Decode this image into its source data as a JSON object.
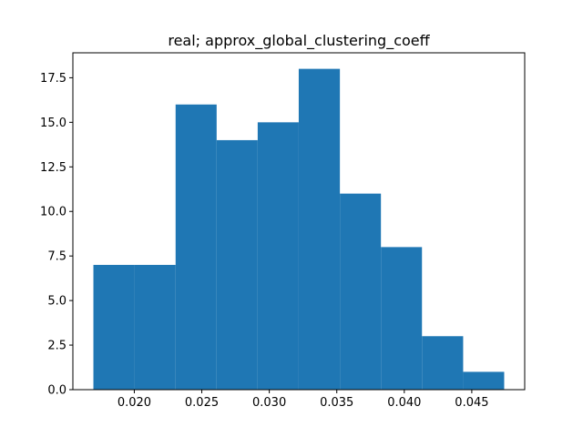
{
  "chart_data": {
    "type": "bar",
    "subtype": "histogram",
    "title": "real; approx_global_clustering_coeff",
    "xlabel": "",
    "ylabel": "",
    "bin_edges": [
      0.01697,
      0.02001,
      0.02306,
      0.0261,
      0.02914,
      0.03218,
      0.03523,
      0.03827,
      0.04131,
      0.04436,
      0.0474
    ],
    "values": [
      7,
      7,
      16,
      14,
      15,
      18,
      11,
      8,
      3,
      1
    ],
    "xlim": [
      0.01545,
      0.04892
    ],
    "ylim": [
      0,
      18.9
    ],
    "xticks": [
      0.02,
      0.025,
      0.03,
      0.035,
      0.04,
      0.045
    ],
    "xtick_labels": [
      "0.020",
      "0.025",
      "0.030",
      "0.035",
      "0.040",
      "0.045"
    ],
    "yticks": [
      0,
      2.5,
      5,
      7.5,
      10,
      12.5,
      15,
      17.5
    ],
    "ytick_labels": [
      "0.0",
      "2.5",
      "5.0",
      "7.5",
      "10.0",
      "12.5",
      "15.0",
      "17.5"
    ],
    "bar_color": "#1f77b4",
    "grid": false,
    "legend": "none"
  }
}
